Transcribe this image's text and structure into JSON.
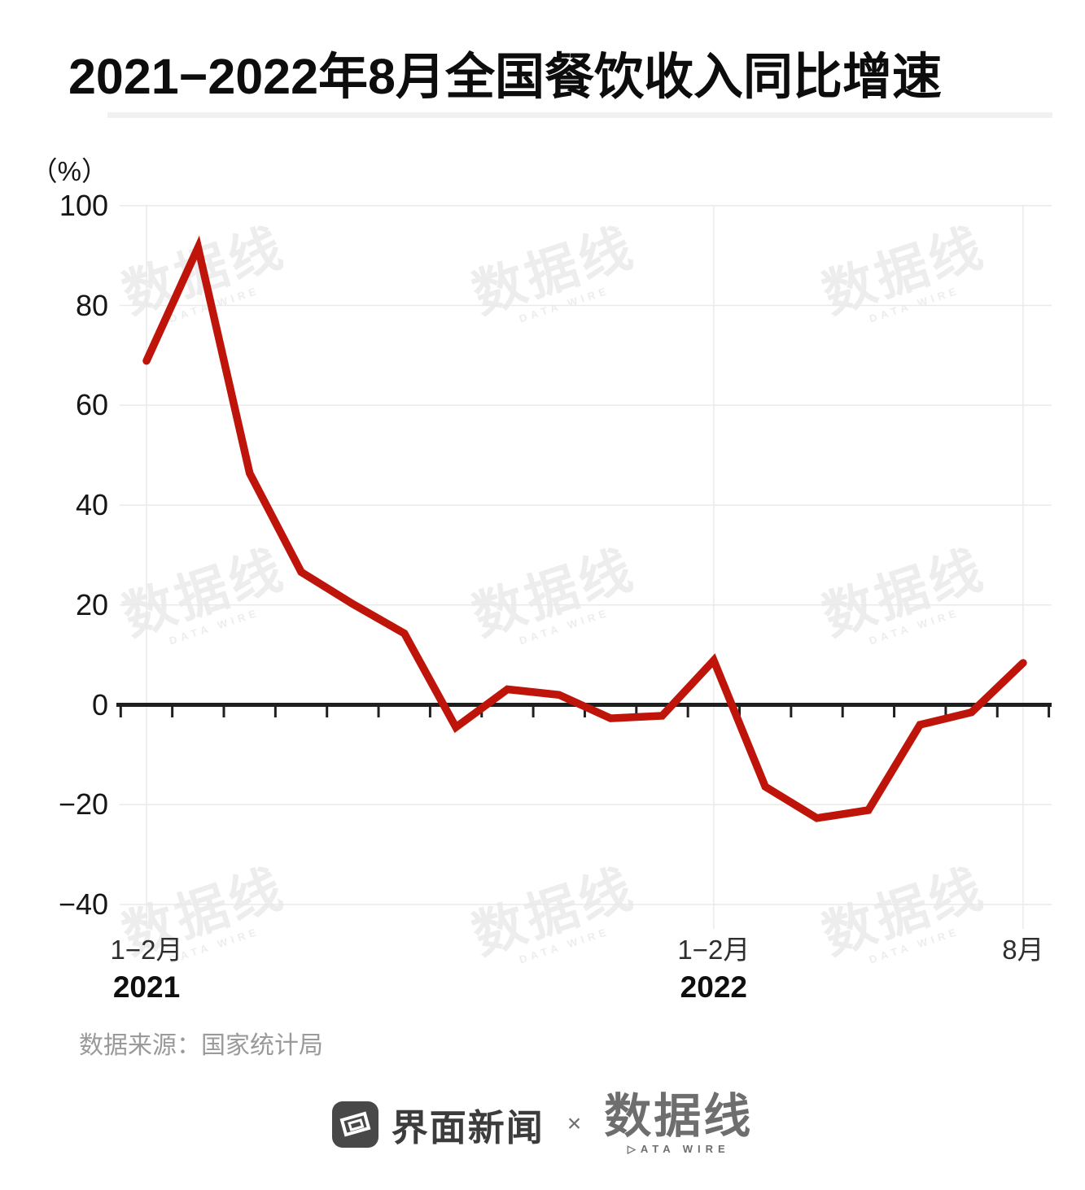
{
  "header": {
    "title": "2021−2022年8月全国餐饮收入同比增速"
  },
  "chart": {
    "unit_label": "（%）"
  },
  "chart_data": {
    "type": "line",
    "title": "2021−2022年8月全国餐饮收入同比增速",
    "unit": "%",
    "categories": [
      "2021年1-2月",
      "2021年3月",
      "2021年4月",
      "2021年5月",
      "2021年6月",
      "2021年7月",
      "2021年8月",
      "2021年9月",
      "2021年10月",
      "2021年11月",
      "2021年12月",
      "2022年1-2月",
      "2022年3月",
      "2022年4月",
      "2022年5月",
      "2022年6月",
      "2022年7月",
      "2022年8月"
    ],
    "values": [
      68.9,
      91.6,
      46.4,
      26.6,
      20.2,
      14.3,
      -4.5,
      3.1,
      2.0,
      -2.7,
      -2.2,
      8.9,
      -16.4,
      -22.7,
      -21.1,
      -4.0,
      -1.5,
      8.4
    ],
    "ylim": [
      -47,
      103
    ],
    "yticks": [
      100,
      80,
      60,
      40,
      20,
      0,
      -20,
      -40
    ],
    "x_axis_annotations": [
      {
        "index": 0,
        "month": "1−2月",
        "year": "2021"
      },
      {
        "index": 11,
        "month": "1−2月",
        "year": "2022"
      },
      {
        "index": 17,
        "month": "8月",
        "year": ""
      }
    ],
    "line_color": "#be140a",
    "axis_color": "#1f1f1f",
    "grid_color": "#eaeaea",
    "grid": true,
    "legend": "none"
  },
  "watermark": {
    "cn": "数据线",
    "en": "DATA WIRE"
  },
  "footer": {
    "source": "数据来源：国家统计局",
    "jiemian_label": "界面新闻",
    "cross_label": "×",
    "datawire_cn": "数据线",
    "datawire_en": "▷ATA WIRE"
  }
}
